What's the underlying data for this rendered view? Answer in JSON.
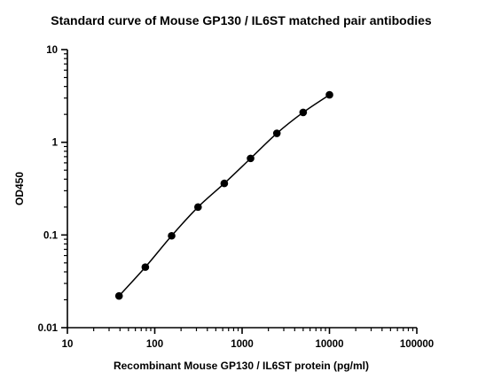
{
  "chart_data": {
    "type": "scatter",
    "title": "Standard curve of Mouse GP130 / IL6ST matched pair antibodies",
    "xlabel": "Recombinant Mouse GP130 / IL6ST protein (pg/ml)",
    "ylabel": "OD450",
    "x_scale": "log",
    "y_scale": "log",
    "xlim": [
      10,
      100000
    ],
    "ylim": [
      0.01,
      10
    ],
    "x_ticks": [
      10,
      100,
      1000,
      10000,
      100000
    ],
    "x_tick_labels": [
      "10",
      "100",
      "1000",
      "10000",
      "100000"
    ],
    "y_ticks": [
      0.01,
      0.1,
      1,
      10
    ],
    "y_tick_labels": [
      "0.01",
      "0.1",
      "1",
      "10"
    ],
    "grid": false,
    "series": [
      {
        "x": [
          39,
          78,
          156,
          313,
          625,
          1250,
          2500,
          5000,
          10000
        ],
        "y": [
          0.022,
          0.045,
          0.098,
          0.2,
          0.36,
          0.67,
          1.25,
          2.1,
          3.25
        ],
        "marker": "circle",
        "fit_line": true,
        "color": "#000000"
      }
    ]
  }
}
